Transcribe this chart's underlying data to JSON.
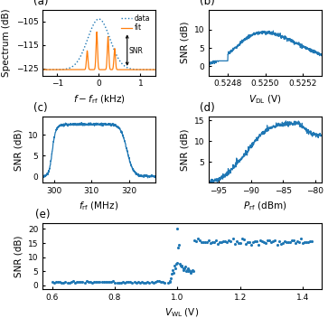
{
  "fig_width": 3.63,
  "fig_height": 3.52,
  "dpi": 100,
  "panel_a": {
    "label": "(a)",
    "xlabel": "$f - f_{\\rm rf}$ (kHz)",
    "ylabel": "Spectrum (dB)",
    "xlim": [
      -1.35,
      1.35
    ],
    "ylim": [
      -128,
      -100
    ],
    "yticks": [
      -125,
      -115,
      -105
    ],
    "xticks": [
      -1,
      0,
      1
    ],
    "data_color": "#1f77b4",
    "fit_color": "#ff7f0e"
  },
  "panel_b": {
    "label": "(b)",
    "xlabel": "$V_{\\rm DL}$ (V)",
    "ylabel": "SNR (dB)",
    "xlim": [
      0.5247,
      0.5253
    ],
    "ylim": [
      -2.5,
      15.5
    ],
    "yticks": [
      0,
      5,
      10
    ],
    "xticks": [
      0.5248,
      0.525,
      0.5252
    ],
    "line_color": "#1f77b4"
  },
  "panel_c": {
    "label": "(c)",
    "xlabel": "$f_{\\rm rf}$ (MHz)",
    "ylabel": "SNR (dB)",
    "xlim": [
      297,
      327
    ],
    "ylim": [
      -1.5,
      14.5
    ],
    "yticks": [
      0,
      5,
      10
    ],
    "xticks": [
      300,
      310,
      320
    ],
    "line_color": "#1f77b4"
  },
  "panel_d": {
    "label": "(d)",
    "xlabel": "$P_{\\rm rf}$ (dBm)",
    "ylabel": "SNR (dB)",
    "xlim": [
      -96.5,
      -79
    ],
    "ylim": [
      0,
      16
    ],
    "yticks": [
      5,
      10,
      15
    ],
    "xticks": [
      -95,
      -90,
      -85,
      -80
    ],
    "line_color": "#1f77b4"
  },
  "panel_e": {
    "label": "(e)",
    "xlabel": "$V_{\\rm WL}$ (V)",
    "ylabel": "SNR (dB)",
    "xlim": [
      0.57,
      1.46
    ],
    "ylim": [
      -1.5,
      22
    ],
    "yticks": [
      0,
      5,
      10,
      15,
      20
    ],
    "xticks": [
      0.6,
      0.8,
      1.0,
      1.2,
      1.4
    ],
    "scatter_color": "#1f77b4"
  },
  "background": "white",
  "tick_fontsize": 6.5,
  "label_fontsize": 7.5,
  "panel_label_fontsize": 8.5
}
